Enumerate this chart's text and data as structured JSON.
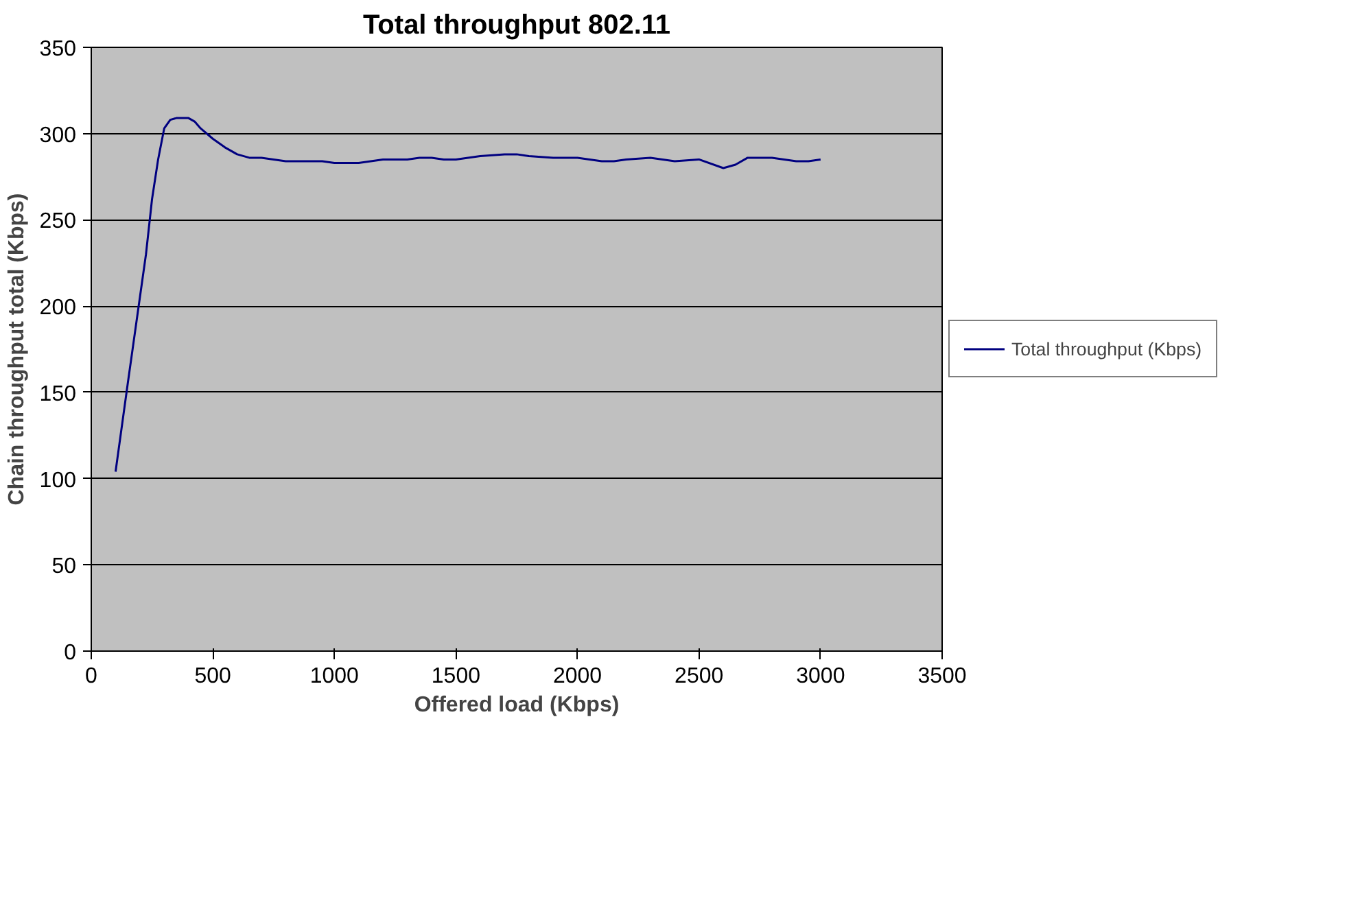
{
  "chart_data": {
    "type": "line",
    "title": "Total throughput 802.11",
    "xlabel": "Offered load (Kbps)",
    "ylabel": "Chain throughput total (Kbps)",
    "x": [
      100,
      150,
      200,
      225,
      250,
      275,
      300,
      325,
      350,
      400,
      425,
      450,
      500,
      550,
      600,
      650,
      700,
      750,
      800,
      900,
      950,
      1000,
      1100,
      1200,
      1300,
      1350,
      1400,
      1450,
      1500,
      1600,
      1700,
      1750,
      1800,
      1900,
      2000,
      2100,
      2150,
      2200,
      2300,
      2400,
      2500,
      2600,
      2650,
      2700,
      2800,
      2900,
      2950,
      3000
    ],
    "series": [
      {
        "name": "Total throughput (Kbps)",
        "color": "#000080",
        "values": [
          104,
          155,
          205,
          230,
          262,
          285,
          303,
          308,
          309,
          309,
          307,
          303,
          297,
          292,
          288,
          286,
          286,
          285,
          284,
          284,
          284,
          283,
          283,
          285,
          285,
          286,
          286,
          285,
          285,
          287,
          288,
          288,
          287,
          286,
          286,
          284,
          284,
          285,
          286,
          284,
          285,
          280,
          282,
          286,
          286,
          284,
          284,
          285
        ]
      }
    ],
    "xlim": [
      0,
      3500
    ],
    "xticks": [
      0,
      500,
      1000,
      1500,
      2000,
      2500,
      3000,
      3500
    ],
    "ylim": [
      0,
      350
    ],
    "yticks": [
      0,
      50,
      100,
      150,
      200,
      250,
      300,
      350
    ],
    "grid": "y",
    "legend": "right",
    "marker": "none",
    "line_style": "solid"
  }
}
